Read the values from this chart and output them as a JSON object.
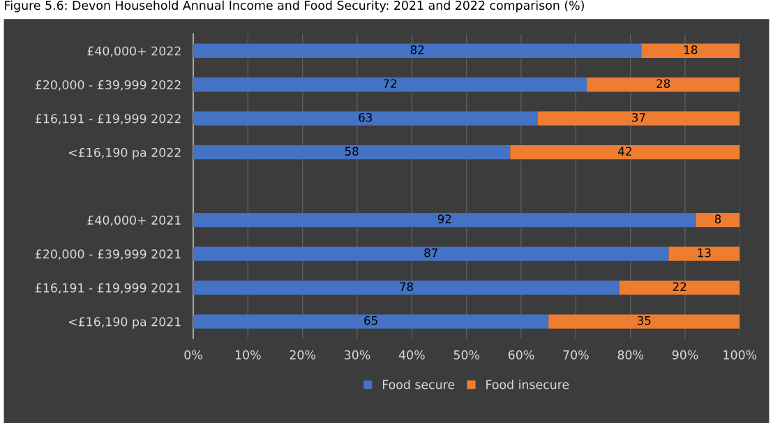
{
  "chart_data": {
    "type": "bar",
    "orientation": "horizontal",
    "stacked": true,
    "data_labels": true,
    "title": "Figure 5.6: Devon Household Annual Income and Food Security: 2021 and 2022 comparison (%)",
    "categories": [
      "£40,000+ 2022",
      "£20,000 - £39,999 2022",
      "£16,191 - £19,999 2022",
      "<£16,190 pa 2022",
      null,
      "£40,000+ 2021",
      "£20,000 - £39,999 2021",
      "£16,191 - £19,999 2021",
      "<£16,190 pa 2021"
    ],
    "series": [
      {
        "name": "Food secure",
        "color": "#4472c4",
        "values": [
          82,
          72,
          63,
          58,
          null,
          92,
          87,
          78,
          65
        ]
      },
      {
        "name": "Food insecure",
        "color": "#ed7d31",
        "values": [
          18,
          28,
          37,
          42,
          null,
          8,
          13,
          22,
          35
        ]
      }
    ],
    "xlim": [
      0,
      100
    ],
    "xticks": [
      {
        "value": 0,
        "label": "0%"
      },
      {
        "value": 10,
        "label": "10%"
      },
      {
        "value": 20,
        "label": "20%"
      },
      {
        "value": 30,
        "label": "30%"
      },
      {
        "value": 40,
        "label": "40%"
      },
      {
        "value": 50,
        "label": "50%"
      },
      {
        "value": 60,
        "label": "60%"
      },
      {
        "value": 70,
        "label": "70%"
      },
      {
        "value": 80,
        "label": "80%"
      },
      {
        "value": 90,
        "label": "90%"
      },
      {
        "value": 100,
        "label": "100%"
      }
    ],
    "grid": "x",
    "legend": "bottom"
  }
}
